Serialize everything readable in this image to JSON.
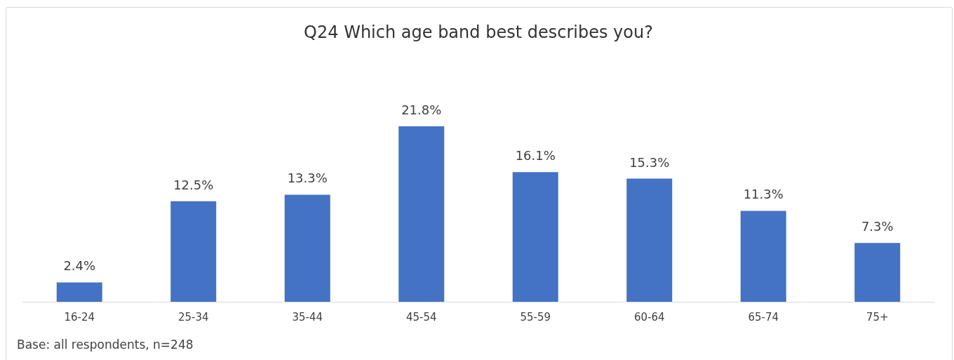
{
  "chart_data": {
    "type": "bar",
    "title": "Q24 Which age band best describes you?",
    "categories": [
      "16-24",
      "25-34",
      "35-44",
      "45-54",
      "55-59",
      "60-64",
      "65-74",
      "75+"
    ],
    "values": [
      2.4,
      12.5,
      13.3,
      21.8,
      16.1,
      15.3,
      11.3,
      7.3
    ],
    "value_labels": [
      "2.4%",
      "12.5%",
      "13.3%",
      "21.8%",
      "16.1%",
      "15.3%",
      "11.3%",
      "7.3%"
    ],
    "color": "#4472c4",
    "annotations": [
      "Base: all respondents, n=248"
    ]
  }
}
